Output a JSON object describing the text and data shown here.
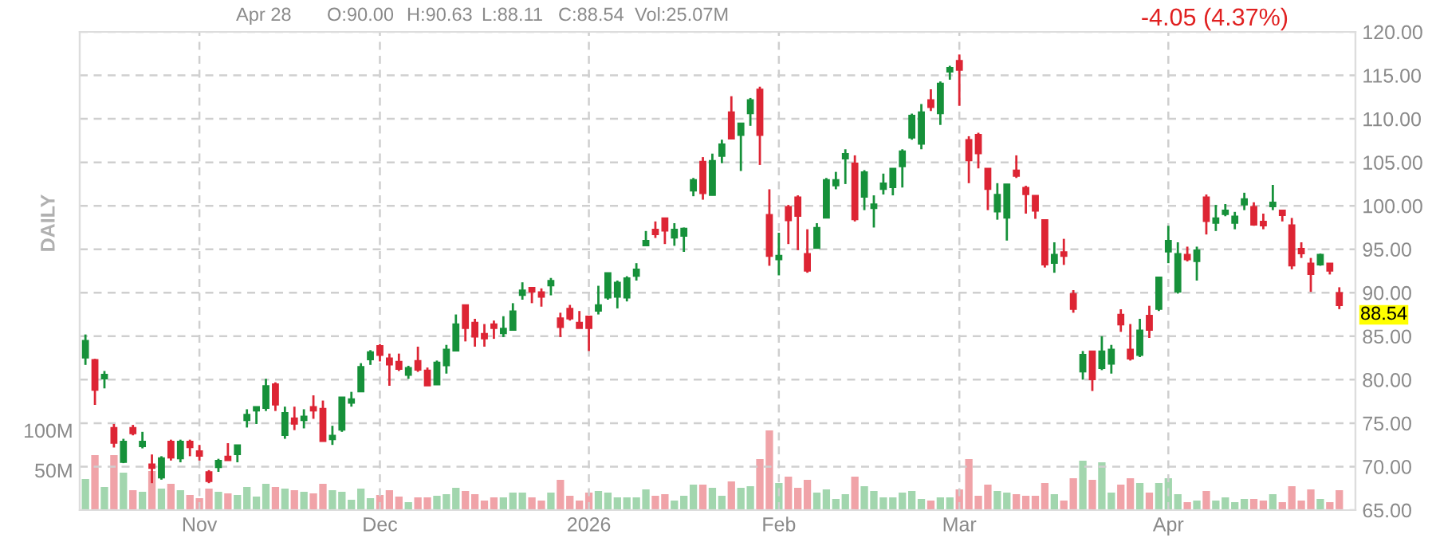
{
  "chart_data": {
    "type": "candlestick",
    "categories": [
      null,
      null,
      null,
      null,
      null,
      null,
      null,
      null,
      null,
      null,
      null,
      null,
      "Nov",
      null,
      null,
      null,
      null,
      null,
      null,
      null,
      null,
      null,
      null,
      null,
      null,
      null,
      null,
      null,
      null,
      null,
      null,
      "Dec",
      null,
      null,
      null,
      null,
      null,
      null,
      null,
      null,
      null,
      null,
      null,
      null,
      null,
      null,
      null,
      null,
      null,
      null,
      null,
      null,
      null,
      "2026",
      null,
      null,
      null,
      null,
      null,
      null,
      null,
      null,
      null,
      null,
      null,
      null,
      null,
      null,
      null,
      null,
      null,
      null,
      null,
      "Feb",
      null,
      null,
      null,
      null,
      null,
      null,
      null,
      null,
      null,
      null,
      null,
      null,
      null,
      null,
      null,
      null,
      null,
      null,
      "Mar",
      null,
      null,
      null,
      null,
      null,
      null,
      null,
      null,
      null,
      null,
      null,
      null,
      null,
      null,
      null,
      null,
      null,
      null,
      null,
      null,
      null,
      "Apr",
      null,
      null,
      null,
      null,
      null,
      null,
      null,
      null,
      null,
      null,
      null,
      null,
      null,
      null,
      null,
      null,
      null,
      null
    ],
    "series": [
      {
        "ohlc": [
          [
            82.5,
            85.2,
            81.7,
            84.5
          ],
          [
            82.3,
            82.4,
            77.1,
            78.8
          ],
          [
            80.1,
            81.0,
            79.0,
            80.6
          ],
          [
            74.5,
            74.9,
            72.2,
            72.7
          ],
          [
            70.5,
            73.2,
            70.4,
            72.9
          ],
          [
            74.5,
            74.8,
            73.6,
            73.8
          ],
          [
            72.3,
            74.0,
            72.1,
            72.9
          ],
          [
            70.3,
            71.4,
            68.1,
            69.8
          ],
          [
            68.7,
            71.2,
            68.5,
            71.0
          ],
          [
            72.9,
            73.1,
            70.7,
            71.0
          ],
          [
            70.9,
            73.1,
            70.5,
            72.9
          ],
          [
            72.9,
            73.1,
            71.2,
            72.2
          ],
          [
            71.8,
            72.5,
            70.7,
            71.2
          ],
          [
            69.4,
            69.6,
            68.1,
            68.3
          ],
          [
            69.9,
            70.9,
            69.4,
            70.7
          ],
          [
            71.2,
            72.7,
            70.7,
            70.7
          ],
          [
            71.4,
            72.5,
            70.5,
            72.5
          ],
          [
            75.3,
            76.6,
            74.5,
            76.0
          ],
          [
            76.4,
            76.9,
            74.9,
            76.9
          ],
          [
            76.7,
            80.1,
            76.4,
            79.3
          ],
          [
            79.5,
            79.7,
            76.4,
            77.1
          ],
          [
            73.6,
            76.9,
            73.2,
            76.2
          ],
          [
            75.6,
            76.9,
            74.2,
            74.9
          ],
          [
            75.3,
            76.6,
            74.4,
            75.8
          ],
          [
            76.9,
            78.2,
            75.5,
            76.4
          ],
          [
            76.7,
            77.6,
            72.9,
            72.9
          ],
          [
            73.1,
            74.7,
            72.5,
            73.6
          ],
          [
            74.2,
            78.0,
            74.0,
            78.0
          ],
          [
            77.3,
            78.6,
            76.9,
            77.8
          ],
          [
            78.6,
            81.9,
            78.6,
            81.5
          ],
          [
            82.3,
            83.4,
            81.7,
            83.2
          ],
          [
            83.9,
            84.1,
            82.1,
            82.8
          ],
          [
            82.5,
            83.0,
            79.3,
            81.7
          ],
          [
            82.1,
            83.0,
            81.0,
            81.2
          ],
          [
            80.5,
            81.6,
            80.1,
            81.4
          ],
          [
            82.2,
            83.8,
            80.9,
            81.1
          ],
          [
            81.1,
            81.4,
            79.3,
            79.3
          ],
          [
            79.4,
            82.2,
            79.4,
            82.0
          ],
          [
            81.6,
            84.0,
            80.7,
            83.5
          ],
          [
            83.3,
            87.5,
            83.3,
            86.4
          ],
          [
            88.6,
            88.6,
            84.4,
            85.9
          ],
          [
            86.6,
            87.0,
            83.8,
            84.9
          ],
          [
            85.3,
            86.4,
            83.8,
            84.7
          ],
          [
            86.4,
            86.8,
            84.7,
            85.9
          ],
          [
            85.3,
            87.3,
            84.9,
            85.9
          ],
          [
            85.7,
            88.8,
            85.7,
            87.9
          ],
          [
            89.7,
            91.2,
            89.2,
            90.3
          ],
          [
            90.6,
            90.6,
            88.8,
            90.1
          ],
          [
            90.1,
            90.5,
            88.4,
            89.5
          ],
          [
            90.8,
            91.7,
            89.7,
            91.4
          ],
          [
            87.1,
            87.7,
            84.9,
            86.0
          ],
          [
            88.2,
            88.6,
            86.8,
            87.0
          ],
          [
            86.6,
            87.9,
            85.9,
            85.9
          ],
          [
            87.3,
            87.3,
            83.3,
            85.9
          ],
          [
            87.9,
            90.8,
            87.5,
            88.6
          ],
          [
            89.4,
            92.3,
            89.2,
            92.3
          ],
          [
            89.5,
            91.4,
            88.2,
            91.2
          ],
          [
            89.4,
            91.9,
            89.0,
            91.7
          ],
          [
            91.9,
            93.4,
            91.4,
            92.7
          ],
          [
            95.4,
            97.1,
            95.4,
            96.0
          ],
          [
            97.3,
            98.2,
            96.3,
            96.7
          ],
          [
            98.6,
            98.6,
            95.6,
            97.1
          ],
          [
            96.3,
            98.0,
            95.4,
            97.3
          ],
          [
            96.5,
            97.5,
            94.7,
            97.4
          ],
          [
            101.7,
            103.2,
            101.1,
            103.0
          ],
          [
            105.1,
            105.6,
            100.7,
            101.4
          ],
          [
            101.2,
            106.0,
            101.2,
            105.2
          ],
          [
            105.7,
            107.6,
            104.9,
            107.1
          ],
          [
            110.8,
            112.6,
            107.7,
            107.7
          ],
          [
            108.1,
            109.5,
            104.0,
            109.5
          ],
          [
            110.6,
            112.4,
            109.2,
            112.2
          ],
          [
            113.4,
            113.7,
            104.7,
            108.1
          ],
          [
            99.0,
            101.9,
            93.1,
            94.2
          ],
          [
            93.8,
            96.9,
            92.0,
            94.3
          ],
          [
            99.9,
            100.1,
            95.6,
            98.3
          ],
          [
            101.0,
            101.2,
            94.9,
            98.8
          ],
          [
            94.5,
            97.3,
            92.3,
            92.5
          ],
          [
            95.1,
            98.0,
            95.1,
            97.5
          ],
          [
            98.6,
            103.2,
            98.6,
            103.0
          ],
          [
            102.3,
            103.9,
            101.9,
            103.0
          ],
          [
            105.4,
            106.5,
            102.5,
            106.0
          ],
          [
            104.9,
            105.8,
            98.2,
            98.4
          ],
          [
            101.0,
            104.1,
            99.5,
            103.9
          ],
          [
            99.7,
            101.2,
            97.5,
            100.2
          ],
          [
            101.9,
            103.7,
            101.3,
            102.6
          ],
          [
            102.1,
            104.3,
            101.2,
            104.3
          ],
          [
            104.5,
            106.5,
            102.1,
            106.3
          ],
          [
            107.8,
            110.6,
            107.6,
            110.4
          ],
          [
            107.1,
            111.7,
            106.5,
            110.8
          ],
          [
            112.2,
            113.4,
            110.9,
            111.3
          ],
          [
            110.6,
            114.3,
            109.3,
            114.1
          ],
          [
            115.4,
            116.1,
            114.5,
            115.9
          ],
          [
            116.7,
            117.4,
            111.5,
            115.6
          ],
          [
            107.6,
            108.0,
            102.6,
            105.2
          ],
          [
            108.2,
            108.4,
            104.3,
            106.0
          ],
          [
            104.3,
            104.3,
            99.5,
            101.9
          ],
          [
            99.3,
            102.6,
            98.4,
            101.3
          ],
          [
            98.6,
            102.5,
            96.0,
            102.5
          ],
          [
            104.1,
            105.8,
            103.2,
            103.4
          ],
          [
            102.1,
            102.3,
            99.1,
            101.3
          ],
          [
            101.2,
            101.2,
            98.5,
            99.4
          ],
          [
            98.4,
            98.4,
            92.9,
            93.2
          ],
          [
            93.4,
            95.8,
            92.3,
            94.4
          ],
          [
            94.7,
            96.2,
            93.2,
            94.2
          ],
          [
            89.9,
            90.3,
            87.7,
            88.1
          ],
          [
            80.9,
            83.3,
            80.0,
            82.9
          ],
          [
            83.3,
            83.3,
            78.7,
            80.0
          ],
          [
            81.3,
            85.0,
            81.1,
            83.3
          ],
          [
            81.8,
            84.0,
            80.7,
            83.5
          ],
          [
            87.5,
            88.1,
            85.5,
            86.3
          ],
          [
            83.5,
            86.4,
            82.2,
            82.4
          ],
          [
            82.8,
            87.0,
            82.6,
            85.7
          ],
          [
            87.4,
            88.5,
            84.8,
            85.7
          ],
          [
            88.1,
            91.8,
            87.9,
            91.8
          ],
          [
            94.7,
            97.7,
            93.4,
            96.0
          ],
          [
            90.1,
            95.8,
            89.9,
            94.5
          ],
          [
            94.4,
            95.3,
            93.6,
            93.8
          ],
          [
            93.6,
            95.3,
            91.4,
            94.9
          ],
          [
            101.0,
            101.3,
            96.7,
            98.2
          ],
          [
            98.0,
            100.1,
            97.1,
            98.6
          ],
          [
            99.0,
            100.2,
            98.8,
            99.5
          ],
          [
            98.0,
            99.3,
            97.3,
            98.8
          ],
          [
            100.1,
            101.5,
            99.5,
            100.8
          ],
          [
            99.9,
            100.4,
            97.7,
            97.8
          ],
          [
            98.2,
            99.1,
            97.3,
            97.7
          ],
          [
            99.9,
            102.4,
            99.5,
            100.4
          ],
          [
            99.5,
            99.5,
            98.2,
            98.9
          ],
          [
            97.8,
            98.6,
            92.7,
            93.1
          ],
          [
            95.1,
            95.8,
            94.0,
            94.5
          ],
          [
            93.4,
            94.0,
            90.1,
            92.1
          ],
          [
            93.2,
            94.5,
            93.1,
            94.4
          ],
          [
            93.4,
            93.4,
            92.1,
            92.5
          ],
          [
            90.0,
            90.63,
            88.11,
            88.54
          ]
        ],
        "colors": [
          "#16913a",
          "#dd2534",
          "#16913a",
          "#dd2534",
          "#16913a",
          "#dd2534",
          "#16913a",
          "#dd2534",
          "#16913a",
          "#dd2534",
          "#16913a",
          "#dd2534",
          "#dd2534",
          "#dd2534",
          "#16913a",
          "#dd2534",
          "#16913a",
          "#16913a",
          "#16913a",
          "#16913a",
          "#dd2534",
          "#16913a",
          "#dd2534",
          "#16913a",
          "#dd2534",
          "#dd2534",
          "#16913a",
          "#16913a",
          "#16913a",
          "#16913a",
          "#16913a",
          "#dd2534",
          "#dd2534",
          "#dd2534",
          "#16913a",
          "#dd2534",
          "#dd2534",
          "#16913a",
          "#16913a",
          "#16913a",
          "#dd2534",
          "#dd2534",
          "#dd2534",
          "#dd2534",
          "#16913a",
          "#16913a",
          "#16913a",
          "#dd2534",
          "#dd2534",
          "#16913a",
          "#dd2534",
          "#dd2534",
          "#dd2534",
          "#dd2534",
          "#16913a",
          "#16913a",
          "#16913a",
          "#16913a",
          "#16913a",
          "#16913a",
          "#dd2534",
          "#dd2534",
          "#16913a",
          "#16913a",
          "#16913a",
          "#dd2534",
          "#16913a",
          "#16913a",
          "#dd2534",
          "#16913a",
          "#16913a",
          "#dd2534",
          "#dd2534",
          "#16913a",
          "#dd2534",
          "#dd2534",
          "#dd2534",
          "#16913a",
          "#16913a",
          "#16913a",
          "#16913a",
          "#dd2534",
          "#16913a",
          "#16913a",
          "#16913a",
          "#16913a",
          "#16913a",
          "#16913a",
          "#16913a",
          "#dd2534",
          "#16913a",
          "#16913a",
          "#dd2534",
          "#dd2534",
          "#dd2534",
          "#dd2534",
          "#16913a",
          "#16913a",
          "#dd2534",
          "#dd2534",
          "#dd2534",
          "#dd2534",
          "#16913a",
          "#dd2534",
          "#dd2534",
          "#16913a",
          "#dd2534",
          "#16913a",
          "#16913a",
          "#dd2534",
          "#dd2534",
          "#16913a",
          "#dd2534",
          "#16913a",
          "#16913a",
          "#16913a",
          "#dd2534",
          "#16913a",
          "#dd2534",
          "#16913a",
          "#16913a",
          "#16913a",
          "#16913a",
          "#dd2534",
          "#dd2534",
          "#16913a",
          "#dd2534",
          "#dd2534",
          "#dd2534",
          "#dd2534",
          "#16913a",
          "#dd2534",
          "#dd2534"
        ]
      },
      {
        "type": "bar",
        "axis": "y2",
        "values": [
          39,
          69,
          29,
          69,
          47,
          25,
          23,
          49,
          27,
          33,
          25,
          19,
          15,
          27,
          23,
          21,
          19,
          29,
          17,
          33,
          29,
          27,
          25,
          23,
          21,
          33,
          25,
          23,
          13,
          27,
          15,
          19,
          25,
          17,
          10,
          16,
          16,
          18,
          20,
          28,
          24,
          20,
          12,
          16,
          16,
          22,
          22,
          16,
          12,
          22,
          38,
          18,
          12,
          22,
          24,
          22,
          16,
          16,
          16,
          26,
          18,
          20,
          12,
          18,
          32,
          32,
          28,
          18,
          36,
          28,
          30,
          64,
          100,
          34,
          42,
          28,
          38,
          22,
          26,
          14,
          20,
          42,
          30,
          24,
          16,
          16,
          22,
          24,
          14,
          12,
          16,
          16,
          26,
          64,
          18,
          32,
          24,
          22,
          20,
          18,
          18,
          34,
          20,
          12,
          40,
          62,
          38,
          60,
          22,
          32,
          40,
          34,
          22,
          34,
          40,
          20,
          10,
          12,
          24,
          12,
          16,
          10,
          14,
          14,
          12,
          20,
          10,
          30,
          12,
          26,
          14,
          10,
          25
        ],
        "colors": [
          "#a2d6ae",
          "#f0a3a8",
          "#a2d6ae",
          "#f0a3a8",
          "#a2d6ae",
          "#f0a3a8",
          "#a2d6ae",
          "#f0a3a8",
          "#a2d6ae",
          "#f0a3a8",
          "#a2d6ae",
          "#f0a3a8",
          "#f0a3a8",
          "#f0a3a8",
          "#a2d6ae",
          "#f0a3a8",
          "#a2d6ae",
          "#a2d6ae",
          "#a2d6ae",
          "#a2d6ae",
          "#f0a3a8",
          "#a2d6ae",
          "#f0a3a8",
          "#a2d6ae",
          "#f0a3a8",
          "#f0a3a8",
          "#a2d6ae",
          "#a2d6ae",
          "#a2d6ae",
          "#a2d6ae",
          "#a2d6ae",
          "#f0a3a8",
          "#f0a3a8",
          "#f0a3a8",
          "#a2d6ae",
          "#f0a3a8",
          "#f0a3a8",
          "#a2d6ae",
          "#a2d6ae",
          "#a2d6ae",
          "#f0a3a8",
          "#f0a3a8",
          "#f0a3a8",
          "#f0a3a8",
          "#a2d6ae",
          "#a2d6ae",
          "#a2d6ae",
          "#f0a3a8",
          "#f0a3a8",
          "#a2d6ae",
          "#f0a3a8",
          "#f0a3a8",
          "#f0a3a8",
          "#f0a3a8",
          "#a2d6ae",
          "#a2d6ae",
          "#a2d6ae",
          "#a2d6ae",
          "#a2d6ae",
          "#a2d6ae",
          "#f0a3a8",
          "#f0a3a8",
          "#a2d6ae",
          "#a2d6ae",
          "#a2d6ae",
          "#f0a3a8",
          "#a2d6ae",
          "#a2d6ae",
          "#f0a3a8",
          "#a2d6ae",
          "#a2d6ae",
          "#f0a3a8",
          "#f0a3a8",
          "#a2d6ae",
          "#f0a3a8",
          "#f0a3a8",
          "#f0a3a8",
          "#a2d6ae",
          "#a2d6ae",
          "#a2d6ae",
          "#a2d6ae",
          "#f0a3a8",
          "#a2d6ae",
          "#a2d6ae",
          "#a2d6ae",
          "#a2d6ae",
          "#a2d6ae",
          "#a2d6ae",
          "#a2d6ae",
          "#f0a3a8",
          "#a2d6ae",
          "#a2d6ae",
          "#f0a3a8",
          "#f0a3a8",
          "#f0a3a8",
          "#f0a3a8",
          "#a2d6ae",
          "#a2d6ae",
          "#f0a3a8",
          "#f0a3a8",
          "#f0a3a8",
          "#f0a3a8",
          "#a2d6ae",
          "#f0a3a8",
          "#f0a3a8",
          "#a2d6ae",
          "#f0a3a8",
          "#a2d6ae",
          "#a2d6ae",
          "#f0a3a8",
          "#f0a3a8",
          "#a2d6ae",
          "#f0a3a8",
          "#a2d6ae",
          "#a2d6ae",
          "#a2d6ae",
          "#f0a3a8",
          "#a2d6ae",
          "#f0a3a8",
          "#a2d6ae",
          "#a2d6ae",
          "#a2d6ae",
          "#a2d6ae",
          "#f0a3a8",
          "#f0a3a8",
          "#a2d6ae",
          "#f0a3a8",
          "#f0a3a8",
          "#f0a3a8",
          "#f0a3a8",
          "#a2d6ae",
          "#f0a3a8",
          "#f0a3a8"
        ]
      }
    ],
    "ylim": [
      65,
      120
    ],
    "yticks": [
      {
        "value": 65,
        "label": "65.00"
      },
      {
        "value": 70,
        "label": "70.00"
      },
      {
        "value": 75,
        "label": "75.00"
      },
      {
        "value": 80,
        "label": "80.00"
      },
      {
        "value": 85,
        "label": "85.00"
      },
      {
        "value": 90,
        "label": "90.00"
      },
      {
        "value": 95,
        "label": "95.00"
      },
      {
        "value": 100,
        "label": "100.00"
      },
      {
        "value": 105,
        "label": "105.00"
      },
      {
        "value": 110,
        "label": "110.00"
      },
      {
        "value": 115,
        "label": "115.00"
      },
      {
        "value": 120,
        "label": "120.00"
      }
    ],
    "y2lim": [
      0,
      600
    ],
    "y2ticks": [
      {
        "value": 50,
        "label": "50M"
      },
      {
        "value": 100,
        "label": "100M"
      }
    ],
    "grid": true,
    "annotations": [
      "Apr 28",
      "O:90.00",
      "H:90.63",
      "L:88.11",
      "C:88.54",
      "Vol:25.07M",
      "-4.05 (4.37%)",
      "DAILY",
      "88.54"
    ]
  }
}
